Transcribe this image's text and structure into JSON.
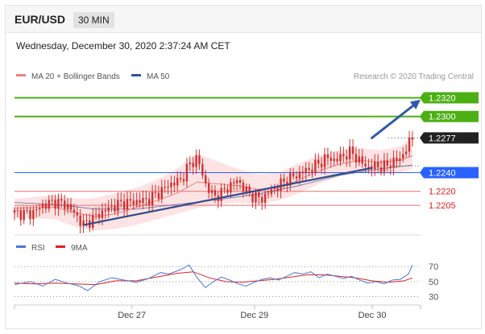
{
  "header": {
    "symbol": "EUR/USD",
    "timeframe": "30 MIN"
  },
  "datetime": "Wednesday, December 30, 2020 2:37:24 AM CET",
  "legend": {
    "ma20_label": "MA 20 + Bollinger Bands",
    "ma50_label": "MA 50",
    "credit": "Research © 2020 Trading Central",
    "rsi_label": "RSI",
    "ma9_label": "9MA"
  },
  "colors": {
    "candle": "#d32f2f",
    "ma20": "#f08080",
    "band_fill": "#fde3e3",
    "ma50": "#2f5597",
    "resistance": "#4caf13",
    "support": "#2962ff",
    "level_red": "#e57373",
    "label_red": "#e02020",
    "current_bg": "#222222",
    "trend": "#2f4c8f",
    "arrow": "#2f5aa8",
    "rsi": "#4a78d6",
    "ma9": "#e02020"
  },
  "chart_data": [
    {
      "type": "line",
      "name": "price",
      "x_ticks": [
        "Dec 27",
        "Dec 29",
        "Dec 30"
      ],
      "ylim": [
        1.2175,
        1.2335
      ],
      "levels": [
        {
          "value": 1.232,
          "label": "1.2320",
          "kind": "resistance"
        },
        {
          "value": 1.23,
          "label": "1.2300",
          "kind": "resistance"
        },
        {
          "value": 1.2277,
          "label": "1.2277",
          "kind": "current"
        },
        {
          "value": 1.224,
          "label": "1.2240",
          "kind": "pivot"
        },
        {
          "value": 1.222,
          "label": "1.2220",
          "kind": "support"
        },
        {
          "value": 1.2205,
          "label": "1.2205",
          "kind": "support"
        }
      ],
      "trendline": [
        [
          0.17,
          1.2184
        ],
        [
          0.88,
          1.2245
        ]
      ],
      "forecast_arrow": [
        [
          0.88,
          1.2277
        ],
        [
          1.0,
          1.2318
        ]
      ],
      "price_path": [
        [
          0.0,
          1.2197
        ],
        [
          0.04,
          1.2196
        ],
        [
          0.07,
          1.2205
        ],
        [
          0.1,
          1.2209
        ],
        [
          0.13,
          1.2205
        ],
        [
          0.15,
          1.2195
        ],
        [
          0.17,
          1.2184
        ],
        [
          0.2,
          1.2193
        ],
        [
          0.22,
          1.2199
        ],
        [
          0.26,
          1.2207
        ],
        [
          0.3,
          1.2209
        ],
        [
          0.33,
          1.2211
        ],
        [
          0.36,
          1.222
        ],
        [
          0.38,
          1.2227
        ],
        [
          0.41,
          1.2232
        ],
        [
          0.43,
          1.2248
        ],
        [
          0.45,
          1.2256
        ],
        [
          0.47,
          1.2228
        ],
        [
          0.49,
          1.2214
        ],
        [
          0.51,
          1.2218
        ],
        [
          0.53,
          1.2226
        ],
        [
          0.55,
          1.2232
        ],
        [
          0.57,
          1.222
        ],
        [
          0.59,
          1.2214
        ],
        [
          0.61,
          1.2212
        ],
        [
          0.63,
          1.222
        ],
        [
          0.65,
          1.2226
        ],
        [
          0.67,
          1.2232
        ],
        [
          0.69,
          1.2236
        ],
        [
          0.71,
          1.2241
        ],
        [
          0.73,
          1.2244
        ],
        [
          0.75,
          1.225
        ],
        [
          0.77,
          1.2256
        ],
        [
          0.79,
          1.2253
        ],
        [
          0.81,
          1.2258
        ],
        [
          0.83,
          1.2262
        ],
        [
          0.85,
          1.2252
        ],
        [
          0.87,
          1.2246
        ],
        [
          0.89,
          1.2247
        ],
        [
          0.91,
          1.2246
        ],
        [
          0.93,
          1.2251
        ],
        [
          0.95,
          1.2255
        ],
        [
          0.96,
          1.2262
        ],
        [
          0.97,
          1.227
        ],
        [
          0.98,
          1.2277
        ]
      ],
      "ma20": [
        [
          0.0,
          1.2202
        ],
        [
          0.1,
          1.2203
        ],
        [
          0.15,
          1.2197
        ],
        [
          0.2,
          1.2193
        ],
        [
          0.25,
          1.2196
        ],
        [
          0.3,
          1.2203
        ],
        [
          0.35,
          1.221
        ],
        [
          0.4,
          1.2218
        ],
        [
          0.45,
          1.223
        ],
        [
          0.5,
          1.2228
        ],
        [
          0.55,
          1.2226
        ],
        [
          0.6,
          1.2222
        ],
        [
          0.65,
          1.2224
        ],
        [
          0.7,
          1.2232
        ],
        [
          0.75,
          1.2242
        ],
        [
          0.8,
          1.2249
        ],
        [
          0.85,
          1.2253
        ],
        [
          0.9,
          1.2251
        ],
        [
          0.95,
          1.2253
        ],
        [
          0.98,
          1.2258
        ]
      ],
      "ma50": [
        [
          0.0,
          1.2208
        ],
        [
          0.1,
          1.2206
        ],
        [
          0.2,
          1.2201
        ],
        [
          0.3,
          1.2201
        ],
        [
          0.4,
          1.2206
        ],
        [
          0.5,
          1.2211
        ],
        [
          0.6,
          1.2217
        ],
        [
          0.7,
          1.2226
        ],
        [
          0.8,
          1.2237
        ],
        [
          0.9,
          1.2244
        ],
        [
          0.98,
          1.2248
        ]
      ],
      "band_upper": [
        [
          0.0,
          1.2212
        ],
        [
          0.1,
          1.2216
        ],
        [
          0.15,
          1.2212
        ],
        [
          0.2,
          1.2213
        ],
        [
          0.25,
          1.2218
        ],
        [
          0.3,
          1.2224
        ],
        [
          0.35,
          1.2232
        ],
        [
          0.4,
          1.2244
        ],
        [
          0.45,
          1.226
        ],
        [
          0.5,
          1.2252
        ],
        [
          0.55,
          1.2244
        ],
        [
          0.6,
          1.2238
        ],
        [
          0.65,
          1.224
        ],
        [
          0.7,
          1.225
        ],
        [
          0.75,
          1.2258
        ],
        [
          0.8,
          1.2264
        ],
        [
          0.85,
          1.2266
        ],
        [
          0.9,
          1.2264
        ],
        [
          0.95,
          1.2268
        ],
        [
          0.98,
          1.2278
        ]
      ],
      "band_lower": [
        [
          0.0,
          1.2192
        ],
        [
          0.1,
          1.219
        ],
        [
          0.15,
          1.2182
        ],
        [
          0.2,
          1.2178
        ],
        [
          0.25,
          1.218
        ],
        [
          0.3,
          1.2184
        ],
        [
          0.35,
          1.219
        ],
        [
          0.4,
          1.2196
        ],
        [
          0.45,
          1.2202
        ],
        [
          0.5,
          1.2206
        ],
        [
          0.55,
          1.2208
        ],
        [
          0.6,
          1.2206
        ],
        [
          0.65,
          1.221
        ],
        [
          0.7,
          1.2218
        ],
        [
          0.75,
          1.2228
        ],
        [
          0.8,
          1.2236
        ],
        [
          0.85,
          1.224
        ],
        [
          0.9,
          1.2238
        ],
        [
          0.95,
          1.224
        ],
        [
          0.98,
          1.2244
        ]
      ]
    },
    {
      "type": "line",
      "name": "RSI",
      "ylim": [
        22,
        82
      ],
      "y_ticks": [
        70,
        50,
        30
      ],
      "rsi": [
        [
          0.0,
          46
        ],
        [
          0.04,
          50
        ],
        [
          0.07,
          44
        ],
        [
          0.1,
          53
        ],
        [
          0.13,
          48
        ],
        [
          0.16,
          44
        ],
        [
          0.18,
          38
        ],
        [
          0.21,
          50
        ],
        [
          0.24,
          55
        ],
        [
          0.27,
          52
        ],
        [
          0.3,
          49
        ],
        [
          0.33,
          54
        ],
        [
          0.36,
          62
        ],
        [
          0.38,
          60
        ],
        [
          0.41,
          66
        ],
        [
          0.43,
          72
        ],
        [
          0.45,
          55
        ],
        [
          0.47,
          42
        ],
        [
          0.49,
          50
        ],
        [
          0.51,
          56
        ],
        [
          0.53,
          52
        ],
        [
          0.55,
          47
        ],
        [
          0.57,
          44
        ],
        [
          0.59,
          49
        ],
        [
          0.61,
          53
        ],
        [
          0.63,
          55
        ],
        [
          0.65,
          52
        ],
        [
          0.67,
          57
        ],
        [
          0.69,
          62
        ],
        [
          0.71,
          60
        ],
        [
          0.73,
          63
        ],
        [
          0.75,
          55
        ],
        [
          0.77,
          60
        ],
        [
          0.79,
          57
        ],
        [
          0.81,
          54
        ],
        [
          0.83,
          57
        ],
        [
          0.85,
          52
        ],
        [
          0.87,
          48
        ],
        [
          0.89,
          50
        ],
        [
          0.91,
          47
        ],
        [
          0.93,
          52
        ],
        [
          0.95,
          53
        ],
        [
          0.97,
          60
        ],
        [
          0.98,
          72
        ]
      ],
      "ma9": [
        [
          0.0,
          48
        ],
        [
          0.05,
          47
        ],
        [
          0.1,
          48
        ],
        [
          0.15,
          47
        ],
        [
          0.2,
          46
        ],
        [
          0.25,
          51
        ],
        [
          0.3,
          51
        ],
        [
          0.35,
          56
        ],
        [
          0.4,
          61
        ],
        [
          0.44,
          63
        ],
        [
          0.48,
          55
        ],
        [
          0.52,
          50
        ],
        [
          0.56,
          49
        ],
        [
          0.6,
          51
        ],
        [
          0.64,
          53
        ],
        [
          0.68,
          56
        ],
        [
          0.72,
          59
        ],
        [
          0.76,
          59
        ],
        [
          0.8,
          57
        ],
        [
          0.84,
          55
        ],
        [
          0.88,
          51
        ],
        [
          0.92,
          49
        ],
        [
          0.96,
          51
        ],
        [
          0.98,
          55
        ]
      ]
    }
  ]
}
